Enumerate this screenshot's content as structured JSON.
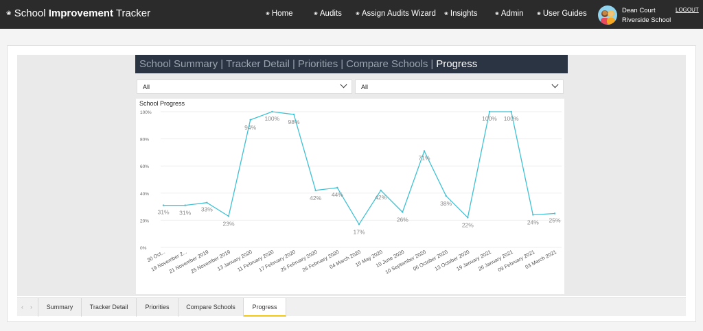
{
  "app": {
    "brand_plain": "School ",
    "brand_bold": "Improvement",
    "brand_suffix": " Tracker"
  },
  "nav": [
    {
      "label": "Home",
      "icon": "flower-icon"
    },
    {
      "label": "Audits",
      "icon": "flower-icon"
    },
    {
      "label": "Assign Audits Wizard",
      "icon": "flower-icon"
    },
    {
      "label": "Insights",
      "icon": "flower-icon"
    },
    {
      "label": "Admin",
      "icon": "flower-icon"
    },
    {
      "label": "User Guides",
      "icon": "flower-icon"
    }
  ],
  "user": {
    "name": "Dean Court",
    "school": "Riverside School",
    "logout_label": "LOGOUT"
  },
  "report_nav": {
    "items": [
      "School Summary",
      "Tracker Detail",
      "Priorities",
      "Compare Schools",
      "Progress"
    ],
    "active": "Progress"
  },
  "filters": {
    "first": "All",
    "second": "All"
  },
  "chart_data": {
    "type": "line",
    "title": "School Progress",
    "ylim": [
      0,
      100
    ],
    "yticks": [
      "0%",
      "20%",
      "40%",
      "60%",
      "80%",
      "100%"
    ],
    "grid": true,
    "line_color": "#3ec1d3",
    "categories": [
      "30 Oct...",
      "19 November 2...",
      "21 November 2019",
      "25 November 2019",
      "13 January 2020",
      "11 February 2020",
      "17 February 2020",
      "25 February 2020",
      "26 February 2020",
      "04 March 2020",
      "15 May 2020",
      "10 June 2020",
      "10 September 2020",
      "06 October 2020",
      "13 October 2020",
      "19 January 2021",
      "26 January 2021",
      "09 February 2021",
      "03 March 2021"
    ],
    "values": [
      31,
      31,
      33,
      23,
      94,
      100,
      98,
      42,
      44,
      17,
      42,
      26,
      71,
      38,
      22,
      100,
      100,
      24,
      25
    ],
    "labels": [
      "31%",
      "31%",
      "33%",
      "23%",
      "94%",
      "100%",
      "98%",
      "42%",
      "44%",
      "17%",
      "42%",
      "26%",
      "71%",
      "38%",
      "22%",
      "100%",
      "100%",
      "24%",
      "25%"
    ]
  },
  "tabs": {
    "items": [
      "Summary",
      "Tracker Detail",
      "Priorities",
      "Compare Schools",
      "Progress"
    ],
    "active": "Progress",
    "prev_arrow": "‹",
    "next_arrow": "›"
  }
}
